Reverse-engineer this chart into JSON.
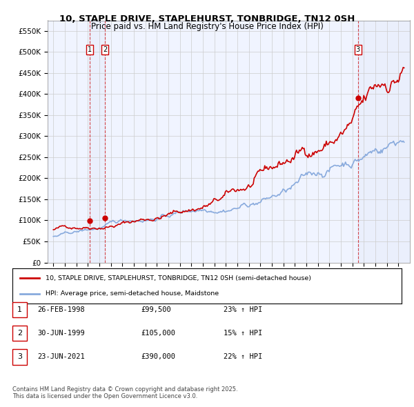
{
  "title_line1": "10, STAPLE DRIVE, STAPLEHURST, TONBRIDGE, TN12 0SH",
  "title_line2": "Price paid vs. HM Land Registry's House Price Index (HPI)",
  "ylabel": "",
  "background_color": "#ffffff",
  "plot_bg_color": "#ffffff",
  "grid_color": "#cccccc",
  "sale1_date": 1998.15,
  "sale2_date": 1999.5,
  "sale3_date": 2021.48,
  "sale1_price": 99500,
  "sale2_price": 105000,
  "sale3_price": 390000,
  "legend_label_red": "10, STAPLE DRIVE, STAPLEHURST, TONBRIDGE, TN12 0SH (semi-detached house)",
  "legend_label_blue": "HPI: Average price, semi-detached house, Maidstone",
  "table_data": [
    [
      "1",
      "26-FEB-1998",
      "£99,500",
      "23% ↑ HPI"
    ],
    [
      "2",
      "30-JUN-1999",
      "£105,000",
      "15% ↑ HPI"
    ],
    [
      "3",
      "23-JUN-2021",
      "£390,000",
      "22% ↑ HPI"
    ]
  ],
  "footnote": "Contains HM Land Registry data © Crown copyright and database right 2025.\nThis data is licensed under the Open Government Licence v3.0.",
  "ylim_max": 575000,
  "xmin": 1994.5,
  "xmax": 2026.0
}
